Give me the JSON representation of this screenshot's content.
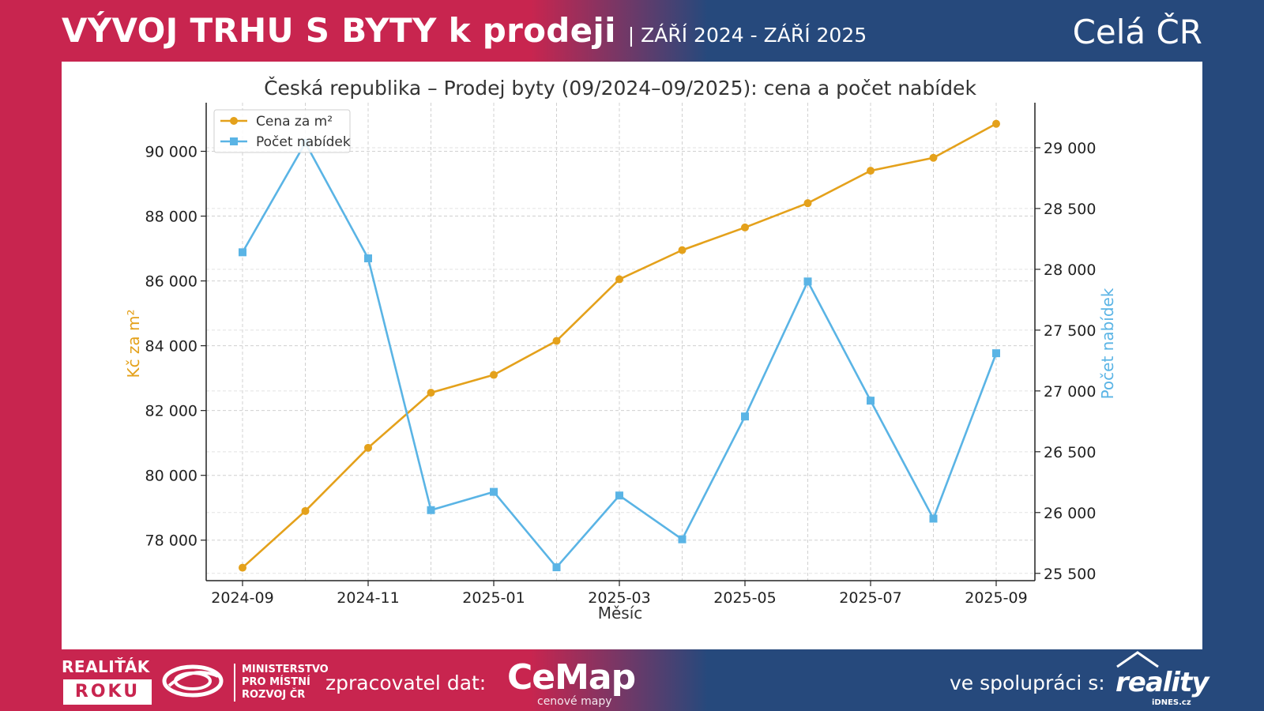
{
  "header": {
    "title": "VÝVOJ TRHU S BYTY k prodeji",
    "period": "| ZÁŘÍ 2024 - ZÁŘÍ 2025",
    "region": "Celá ČR"
  },
  "footer": {
    "award_top": "REALIŤÁK",
    "award_bottom": "ROKU",
    "ministry": [
      "MINISTERSTVO",
      "PRO MÍSTNÍ",
      "ROZVOJ ČR"
    ],
    "processor_label": "zpracovatel dat:",
    "cemap_name": "CeMap",
    "cemap_tagline": "cenové mapy",
    "partner_label": "ve spolupráci s:",
    "partner_name": "reality",
    "partner_sub": "iDNES.cz"
  },
  "colors": {
    "price": "#e4a11b",
    "offers": "#5ab4e5",
    "brand_red": "#c8254f",
    "brand_blue": "#26497c"
  },
  "chart_data": {
    "type": "line",
    "title": "Česká republika – Prodej byty (09/2024–09/2025): cena a počet nabídek",
    "xlabel": "Měsíc",
    "ylabel_left": "Kč za m²",
    "ylabel_right": "Počet nabídek",
    "x": [
      "2024-09",
      "2024-10",
      "2024-11",
      "2024-12",
      "2025-01",
      "2025-02",
      "2025-03",
      "2025-04",
      "2025-05",
      "2025-06",
      "2025-07",
      "2025-08",
      "2025-09"
    ],
    "x_tick_labels": [
      "2024-09",
      "2024-11",
      "2025-01",
      "2025-03",
      "2025-05",
      "2025-07",
      "2025-09"
    ],
    "y_left_ticks": [
      "78 000",
      "80 000",
      "82 000",
      "84 000",
      "86 000",
      "88 000",
      "90 000"
    ],
    "y_left_tick_values": [
      78000,
      80000,
      82000,
      84000,
      86000,
      88000,
      90000
    ],
    "y_left_range": [
      76750,
      91500
    ],
    "y_right_ticks": [
      "25 500",
      "26 000",
      "26 500",
      "27 000",
      "27 500",
      "28 000",
      "28 500",
      "29 000"
    ],
    "y_right_tick_values": [
      25500,
      26000,
      26500,
      27000,
      27500,
      28000,
      28500,
      29000
    ],
    "y_right_range": [
      25440,
      29370
    ],
    "grid": true,
    "legend_position": "top-left",
    "series": [
      {
        "name": "Cena za m²",
        "axis": "left",
        "marker": "circle",
        "values": [
          77150,
          78900,
          80850,
          82550,
          83100,
          84150,
          86050,
          86950,
          87650,
          88400,
          89400,
          89800,
          90850
        ]
      },
      {
        "name": "Počet nabídek",
        "axis": "right",
        "marker": "square",
        "values": [
          28140,
          29040,
          28090,
          26020,
          26170,
          25550,
          26140,
          25780,
          26790,
          27900,
          26920,
          25950,
          27310
        ]
      }
    ]
  }
}
